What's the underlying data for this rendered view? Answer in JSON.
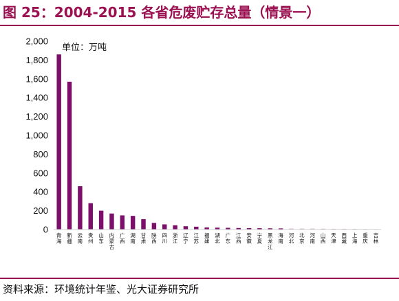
{
  "figure": {
    "title": "图 25：2004-2015 各省危废贮存总量（情景一）",
    "source": "资料来源：环境统计年鉴、光大证券研究所"
  },
  "colors": {
    "accent": "#9b1050",
    "bar": "#7b0f6a",
    "bar_light": "#d9b8d6"
  },
  "chart_data": {
    "type": "bar",
    "unit_label": "单位：万吨",
    "ylim": [
      0,
      2000
    ],
    "yticks": [
      0,
      200,
      400,
      600,
      800,
      1000,
      1200,
      1400,
      1600,
      1800,
      2000
    ],
    "ytick_labels": [
      "0",
      "200",
      "400",
      "600",
      "800",
      "1,000",
      "1,200",
      "1,400",
      "1,600",
      "1,800",
      "2,000"
    ],
    "categories": [
      "青海",
      "新疆",
      "云南",
      "贵州",
      "山东",
      "内蒙古",
      "广西",
      "湖南",
      "甘肃",
      "陕西",
      "四川",
      "浙江",
      "辽宁",
      "江苏",
      "福建",
      "湖北",
      "广东",
      "江西",
      "安徽",
      "宁夏",
      "黑龙江",
      "海南",
      "河北",
      "北京",
      "河南",
      "山西",
      "天津",
      "西藏",
      "上海",
      "重庆",
      "吉林"
    ],
    "values": [
      1860,
      1570,
      460,
      280,
      200,
      170,
      150,
      145,
      110,
      70,
      55,
      45,
      35,
      30,
      22,
      20,
      18,
      16,
      15,
      14,
      13,
      12,
      11,
      10,
      10,
      9,
      8,
      8,
      7,
      6,
      5
    ],
    "grid": false,
    "legend": "none"
  }
}
